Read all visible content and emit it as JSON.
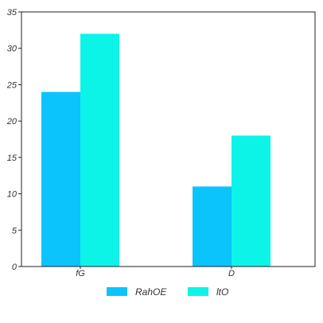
{
  "chart_data": {
    "type": "bar",
    "categories": [
      "fG",
      "D"
    ],
    "series": [
      {
        "name": "RahOE",
        "values": [
          24,
          11
        ],
        "color": "#0bc4fc"
      },
      {
        "name": "ltO",
        "values": [
          32,
          18
        ],
        "color": "#0cf4e8"
      }
    ],
    "ylim": [
      0,
      35
    ],
    "yticks": [
      0,
      5,
      10,
      15,
      20,
      25,
      30,
      35
    ],
    "grid": false,
    "legend": "bottom-center",
    "title": "",
    "xlabel": "",
    "ylabel": ""
  }
}
